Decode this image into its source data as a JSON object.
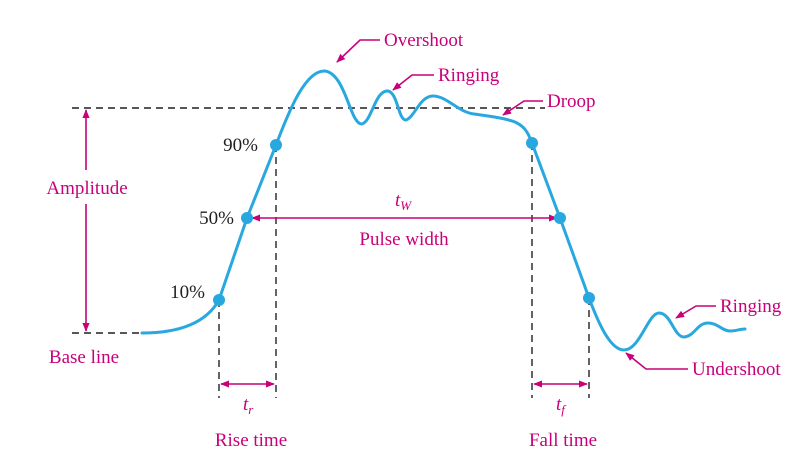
{
  "colors": {
    "waveform": "#29a8e0",
    "annotation": "#c8007a",
    "reference_lines": "#231f20"
  },
  "labels": {
    "overshoot": "Overshoot",
    "ringing_top": "Ringing",
    "droop": "Droop",
    "amplitude": "Amplitude",
    "base_line": "Base line",
    "pulse_width": "Pulse width",
    "rise_time": "Rise time",
    "fall_time": "Fall time",
    "ringing_bottom": "Ringing",
    "undershoot": "Undershoot"
  },
  "levels": {
    "p90": "90%",
    "p50": "50%",
    "p10": "10%"
  },
  "symbols": {
    "tw_main": "t",
    "tw_sub": "W",
    "tr_main": "t",
    "tr_sub": "r",
    "tf_main": "t",
    "tf_sub": "f"
  }
}
